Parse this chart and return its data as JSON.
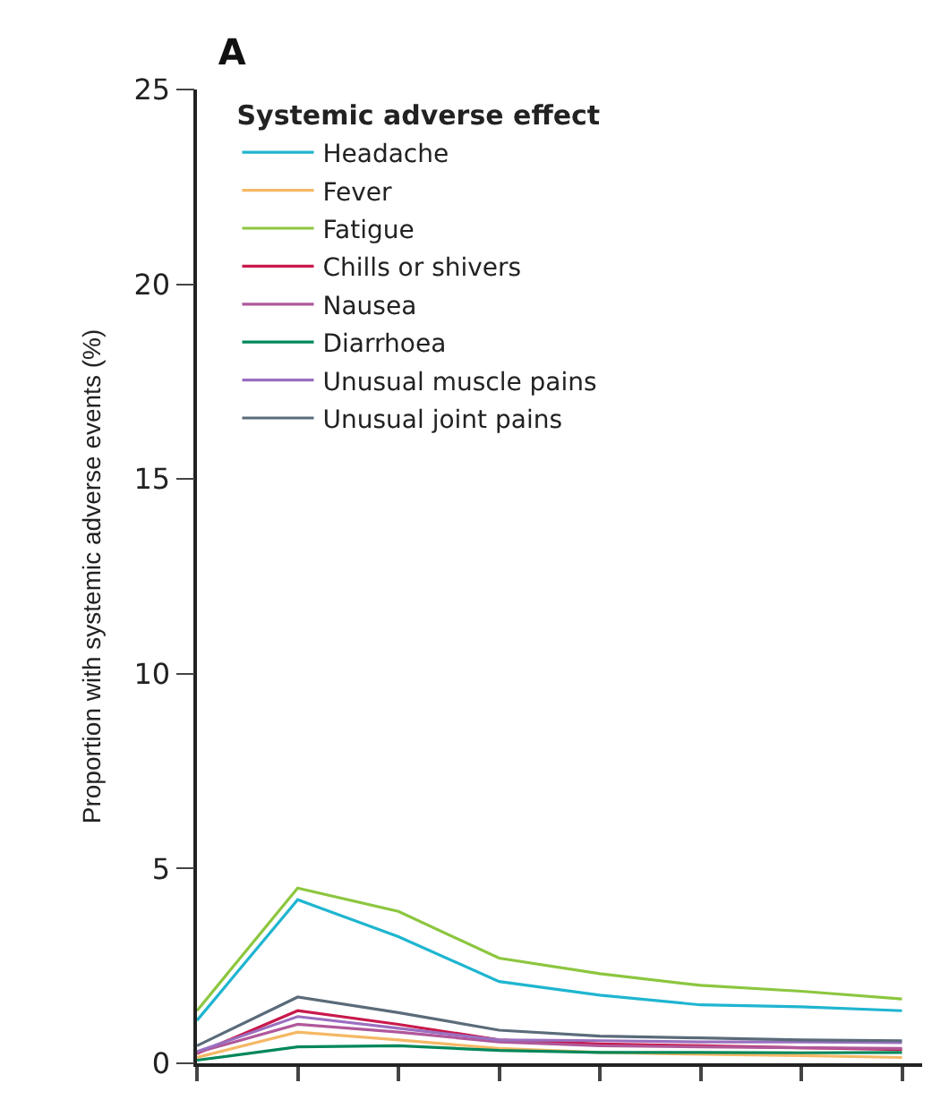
{
  "chart_data": {
    "type": "line",
    "title": "A",
    "ylabel": "Proportion with systemic adverse events (%)",
    "legend_title": "Systemic adverse effect",
    "categories": [
      null,
      null,
      null,
      null,
      null,
      null,
      null,
      null
    ],
    "ylim": [
      0,
      25
    ],
    "yticks": [
      0,
      5,
      10,
      15,
      20,
      25
    ],
    "legend": "top left",
    "marker": "none",
    "line_style": "solid",
    "series": [
      {
        "name": "Headache",
        "color": "#1fb5d0",
        "values": [
          1.1,
          4.2,
          3.25,
          2.1,
          1.75,
          1.5,
          1.45,
          1.35
        ]
      },
      {
        "name": "Fever",
        "color": "#f5b865",
        "values": [
          0.15,
          0.8,
          0.6,
          0.38,
          0.28,
          0.23,
          0.2,
          0.15
        ]
      },
      {
        "name": "Fatigue",
        "color": "#8cc63f",
        "values": [
          1.35,
          4.5,
          3.9,
          2.7,
          2.3,
          2.0,
          1.85,
          1.65
        ]
      },
      {
        "name": "Chills or shivers",
        "color": "#c8194b",
        "values": [
          0.25,
          1.35,
          1.0,
          0.6,
          0.5,
          0.45,
          0.4,
          0.35
        ]
      },
      {
        "name": "Nausea",
        "color": "#b0589a",
        "values": [
          0.28,
          1.0,
          0.8,
          0.55,
          0.45,
          0.42,
          0.4,
          0.38
        ]
      },
      {
        "name": "Diarrhoea",
        "color": "#00875a",
        "values": [
          0.08,
          0.42,
          0.45,
          0.33,
          0.28,
          0.28,
          0.27,
          0.28
        ]
      },
      {
        "name": "Unusual muscle pains",
        "color": "#9a6fc0",
        "values": [
          0.3,
          1.2,
          0.9,
          0.6,
          0.58,
          0.55,
          0.55,
          0.53
        ]
      },
      {
        "name": "Unusual joint pains",
        "color": "#5a6b7a",
        "values": [
          0.45,
          1.7,
          1.3,
          0.85,
          0.7,
          0.65,
          0.6,
          0.58
        ]
      }
    ]
  }
}
